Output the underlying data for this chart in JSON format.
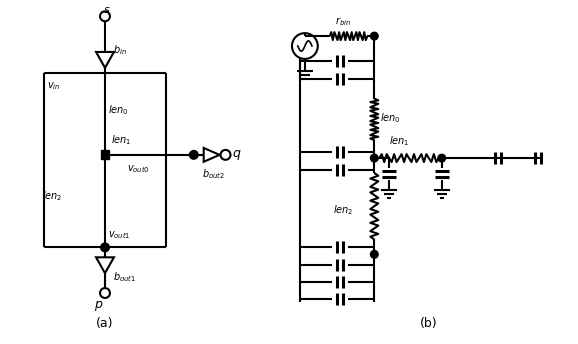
{
  "fig_width": 5.78,
  "fig_height": 3.44,
  "dpi": 100,
  "bg_color": "white",
  "line_color": "black",
  "lw": 1.5
}
